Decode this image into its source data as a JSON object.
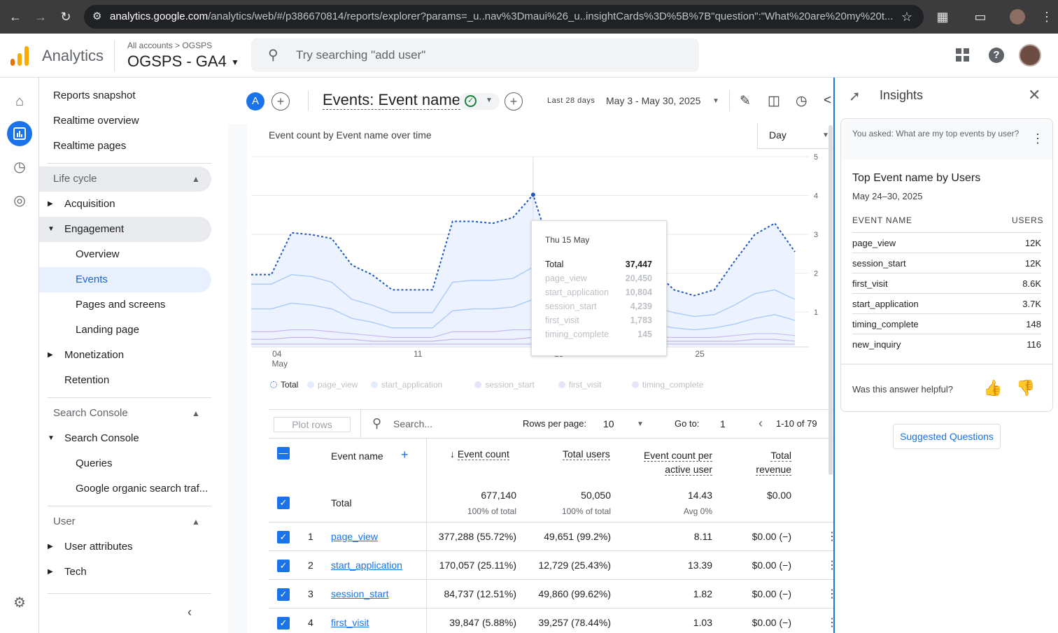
{
  "browser": {
    "url_host": "analytics.google.com",
    "url_path": "/analytics/web/#/p386670814/reports/explorer?params=_u..nav%3Dmaui%26_u..insightCards%3D%5B%7B\"question\":\"What%20are%20my%20t..."
  },
  "header": {
    "app_name": "Analytics",
    "breadcrumb_all": "All accounts",
    "breadcrumb_sep": ">",
    "breadcrumb_account": "OGSPS",
    "property": "OGSPS - GA4",
    "search_placeholder": "Try searching \"add user\""
  },
  "nav": {
    "reports_snapshot": "Reports snapshot",
    "realtime_overview": "Realtime overview",
    "realtime_pages": "Realtime pages",
    "lifecycle": "Life cycle",
    "acquisition": "Acquisition",
    "engagement": "Engagement",
    "overview": "Overview",
    "events": "Events",
    "pages_screens": "Pages and screens",
    "landing_page": "Landing page",
    "monetization": "Monetization",
    "retention": "Retention",
    "search_console_section": "Search Console",
    "search_console": "Search Console",
    "queries": "Queries",
    "google_organic": "Google organic search traf...",
    "user_section": "User",
    "user_attributes": "User attributes",
    "tech": "Tech"
  },
  "report": {
    "avatar_letter": "A",
    "title": "Events: Event name",
    "date_label": "Last 28 days",
    "date_range": "May 3 - May 30, 2025",
    "chart_title": "Event count by Event name over time",
    "granularity": "Day"
  },
  "chart_data": {
    "type": "line",
    "x_ticks": [
      "04",
      "11",
      "18",
      "25"
    ],
    "x_tick_sub": "May",
    "series": [
      {
        "name": "Total"
      },
      {
        "name": "page_view"
      },
      {
        "name": "start_application"
      },
      {
        "name": "session_start"
      },
      {
        "name": "first_visit"
      },
      {
        "name": "timing_complete"
      }
    ],
    "y_ticks_partial": [
      "5",
      "4",
      "3",
      "2",
      "1"
    ],
    "tooltip": {
      "date": "Thu 15 May",
      "rows": [
        {
          "name": "Total",
          "value": "37,447"
        },
        {
          "name": "page_view",
          "value": "20,450"
        },
        {
          "name": "start_application",
          "value": "10,804"
        },
        {
          "name": "session_start",
          "value": "4,239"
        },
        {
          "name": "first_visit",
          "value": "1,783"
        },
        {
          "name": "timing_complete",
          "value": "145"
        }
      ]
    },
    "legend_position": "bottom-left"
  },
  "table": {
    "plot_rows": "Plot rows",
    "search_placeholder": "Search...",
    "rows_per_page_label": "Rows per page:",
    "rows_per_page": "10",
    "goto_label": "Go to:",
    "goto_value": "1",
    "pagination": "1-10 of 79",
    "col_event_name": "Event name",
    "col_event_count": "Event count",
    "col_total_users": "Total users",
    "col_per_user_1": "Event count per",
    "col_per_user_2": "active user",
    "col_revenue_1": "Total",
    "col_revenue_2": "revenue",
    "total_label": "Total",
    "total_event_count": "677,140",
    "total_event_count_sub": "100% of total",
    "total_users": "50,050",
    "total_users_sub": "100% of total",
    "total_per_user": "14.43",
    "total_per_user_sub": "Avg 0%",
    "total_revenue": "$0.00",
    "rows": [
      {
        "num": "1",
        "name": "page_view",
        "count": "377,288 (55.72%)",
        "users": "49,651 (99.2%)",
        "per_user": "8.11",
        "revenue": "$0.00 (−)"
      },
      {
        "num": "2",
        "name": "start_application",
        "count": "170,057 (25.11%)",
        "users": "12,729 (25.43%)",
        "per_user": "13.39",
        "revenue": "$0.00 (−)"
      },
      {
        "num": "3",
        "name": "session_start",
        "count": "84,737 (12.51%)",
        "users": "49,860 (99.62%)",
        "per_user": "1.82",
        "revenue": "$0.00 (−)"
      },
      {
        "num": "4",
        "name": "first_visit",
        "count": "39,847 (5.88%)",
        "users": "39,257 (78.44%)",
        "per_user": "1.03",
        "revenue": "$0.00 (−)"
      }
    ]
  },
  "insights": {
    "title": "Insights",
    "asked": "You asked: What are my top events by user?",
    "card_title": "Top Event name by Users",
    "card_dates": "May 24–30, 2025",
    "col_name": "EVENT NAME",
    "col_users": "USERS",
    "rows": [
      {
        "name": "page_view",
        "users": "12K"
      },
      {
        "name": "session_start",
        "users": "12K"
      },
      {
        "name": "first_visit",
        "users": "8.6K"
      },
      {
        "name": "start_application",
        "users": "3.7K"
      },
      {
        "name": "timing_complete",
        "users": "148"
      },
      {
        "name": "new_inquiry",
        "users": "116"
      }
    ],
    "helpful": "Was this answer helpful?",
    "suggested": "Suggested Questions"
  },
  "colors": {
    "accent": "#1a73e8",
    "total_line": "#1a56c4",
    "series_light": "#aecbfa",
    "series_purple": "#c5b3f0"
  }
}
